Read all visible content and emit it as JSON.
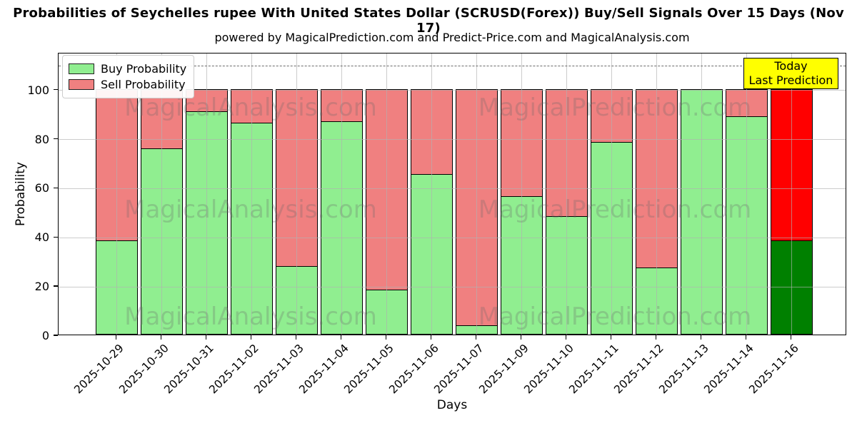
{
  "title": "Probabilities of Seychelles rupee With United States Dollar (SCRUSD(Forex)) Buy/Sell Signals Over 15 Days (Nov 17)",
  "subtitle": "powered by MagicalPrediction.com and Predict-Price.com and MagicalAnalysis.com",
  "legend": {
    "buy_label": "Buy Probability",
    "sell_label": "Sell Probability"
  },
  "annotation": {
    "line1": "Today",
    "line2": "Last Prediction",
    "bg_color": "#ffff00"
  },
  "watermarks": {
    "left_text": "MagicalAnalysis.com",
    "right_text": "MagicalPrediction.com"
  },
  "colors": {
    "buy": "#90ee90",
    "sell": "#f08080",
    "today_buy": "#008000",
    "today_sell": "#ff0000",
    "bar_edge": "#000000",
    "grid": "#b0b0b0",
    "threshold_line": "#6b6b6b",
    "annotation_border": "#000000"
  },
  "chart_data": {
    "type": "bar",
    "stacked": true,
    "title": "Probabilities of Seychelles rupee With United States Dollar (SCRUSD(Forex)) Buy/Sell Signals Over 15 Days (Nov 17)",
    "xlabel": "Days",
    "ylabel": "Probability",
    "categories": [
      "2025-10-29",
      "2025-10-30",
      "2025-10-31",
      "2025-11-02",
      "2025-11-03",
      "2025-11-04",
      "2025-11-05",
      "2025-11-06",
      "2025-11-07",
      "2025-11-09",
      "2025-11-10",
      "2025-11-11",
      "2025-11-12",
      "2025-11-13",
      "2025-11-14",
      "2025-11-16"
    ],
    "series": [
      {
        "name": "Buy Probability",
        "color": "#90ee90",
        "values": [
          38.5,
          76,
          91,
          86.5,
          28,
          87,
          18.5,
          65.5,
          4,
          56.5,
          48.5,
          78.5,
          27.5,
          100,
          89,
          38.5
        ]
      },
      {
        "name": "Sell Probability",
        "color": "#f08080",
        "values": [
          61.5,
          24,
          9,
          13.5,
          72,
          13,
          81.5,
          34.5,
          96,
          43.5,
          51.5,
          21.5,
          72.5,
          0,
          11,
          61.5
        ]
      }
    ],
    "last_bar_special_colors": {
      "buy": "#008000",
      "sell": "#ff0000"
    },
    "yticks": [
      0,
      20,
      40,
      60,
      80,
      100
    ],
    "ylim": [
      0,
      115
    ],
    "threshold_dashed_y": 110,
    "grid": true,
    "legend_position": "upper left"
  }
}
